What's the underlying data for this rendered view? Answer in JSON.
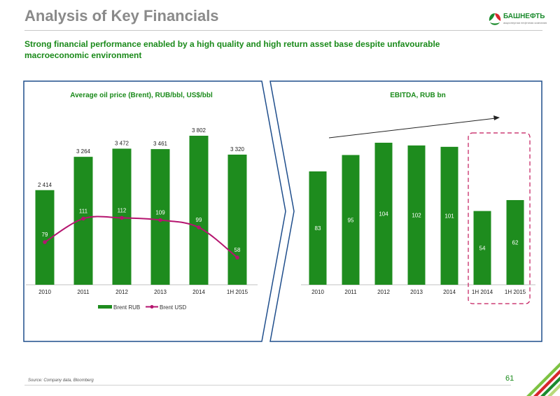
{
  "header": {
    "title": "Analysis of Key Financials",
    "subtitle": "Strong financial performance enabled by a high quality and high return asset base despite unfavourable macroeconomic environment",
    "logo_text": "БАШНЕФТЬ",
    "logo_subtext": "акционерная нефтяная компания"
  },
  "footer": {
    "source": "Source: Company data, Bloomberg",
    "page_number": "61"
  },
  "colors": {
    "bar_green": "#1e8c1e",
    "line_magenta": "#b5156f",
    "panel_border": "#1f4e8c",
    "accent_green": "#1a8a1a",
    "dashed_pink": "#c2185b"
  },
  "chart_data": [
    {
      "type": "bar",
      "title": "Average oil price (Brent), RUB/bbl, US$/bbl",
      "categories": [
        "2010",
        "2011",
        "2012",
        "2013",
        "2014",
        "1H 2015"
      ],
      "series": [
        {
          "name": "Brent RUB",
          "type": "bar",
          "values": [
            2414,
            3264,
            3472,
            3461,
            3802,
            3320
          ],
          "labels": [
            "2 414",
            "3 264",
            "3 472",
            "3 461",
            "3 802",
            "3 320"
          ]
        },
        {
          "name": "Brent USD",
          "type": "line",
          "values": [
            79,
            111,
            112,
            109,
            99,
            58
          ],
          "labels": [
            "79",
            "111",
            "112",
            "109",
            "99",
            "58"
          ]
        }
      ],
      "legend": "bottom",
      "grid": false
    },
    {
      "type": "bar",
      "title": "EBITDA, RUB bn",
      "categories": [
        "2010",
        "2011",
        "2012",
        "2013",
        "2014",
        "1H 2014",
        "1H 2015"
      ],
      "values": [
        83,
        95,
        104,
        102,
        101,
        54,
        62
      ],
      "labels": [
        "83",
        "95",
        "104",
        "102",
        "101",
        "54",
        "62"
      ],
      "highlight": [
        "1H 2014",
        "1H 2015"
      ],
      "legend": "none",
      "grid": false
    }
  ]
}
